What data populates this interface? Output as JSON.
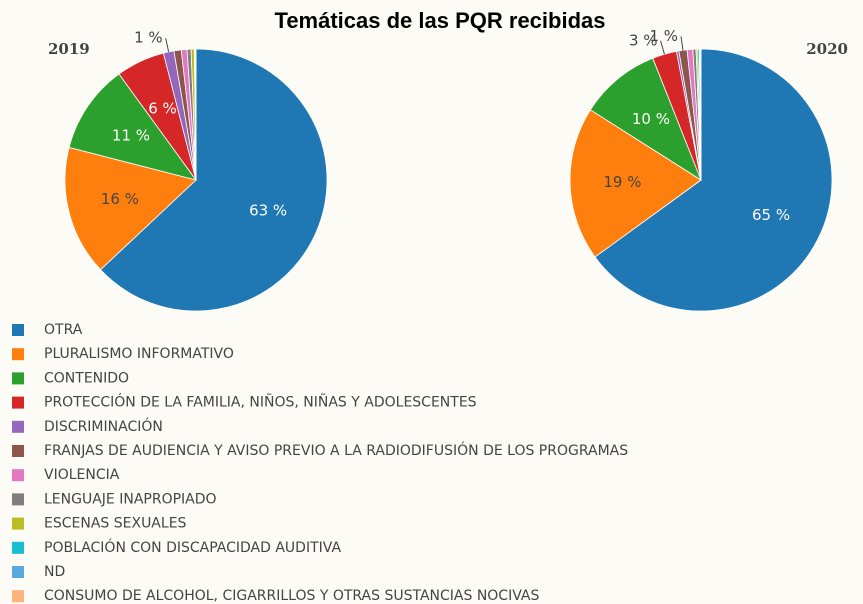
{
  "chart_data": {
    "type": "pie",
    "title": "Temáticas de las PQR recibidas",
    "categories": [
      "OTRA",
      "PLURALISMO INFORMATIVO",
      "CONTENIDO",
      "PROTECCIÓN DE LA FAMILIA, NIÑOS, NIÑAS Y ADOLESCENTES",
      "DISCRIMINACIÓN",
      "FRANJAS DE AUDIENCIA Y AVISO PREVIO A LA RADIODIFUSIÓN DE LOS PROGRAMAS",
      "VIOLENCIA",
      "LENGUAJE INAPROPIADO",
      "ESCENAS SEXUALES",
      "POBLACIÓN CON DISCAPACIDAD AUDITIVA",
      "ND",
      "CONSUMO DE ALCOHOL, CIGARRILLOS Y OTRAS SUSTANCIAS NOCIVAS"
    ],
    "colors": [
      "#1f77b4",
      "#ff7f0e",
      "#2ca02c",
      "#d62728",
      "#9467bd",
      "#8c564b",
      "#e377c2",
      "#7f7f7f",
      "#bcbd22",
      "#17becf",
      "#5aa8e0",
      "#ffb27a"
    ],
    "series": [
      {
        "name": "2019",
        "values": [
          63,
          16,
          11,
          6,
          1.3,
          0.9,
          0.7,
          0.5,
          0.4,
          0.1,
          0.05,
          0.05
        ],
        "value_labels": [
          "63 %",
          "16 %",
          "11 %",
          "6 %",
          "1 %",
          null,
          null,
          null,
          null,
          null,
          null,
          null
        ]
      },
      {
        "name": "2020",
        "values": [
          65,
          19,
          10,
          3,
          0.3,
          1.0,
          0.7,
          0.4,
          0.2,
          0.2,
          0.1,
          0.1
        ],
        "value_labels": [
          "65 %",
          "19 %",
          "10 %",
          "3 %",
          null,
          "1 %",
          null,
          null,
          null,
          null,
          null,
          null
        ]
      }
    ]
  }
}
